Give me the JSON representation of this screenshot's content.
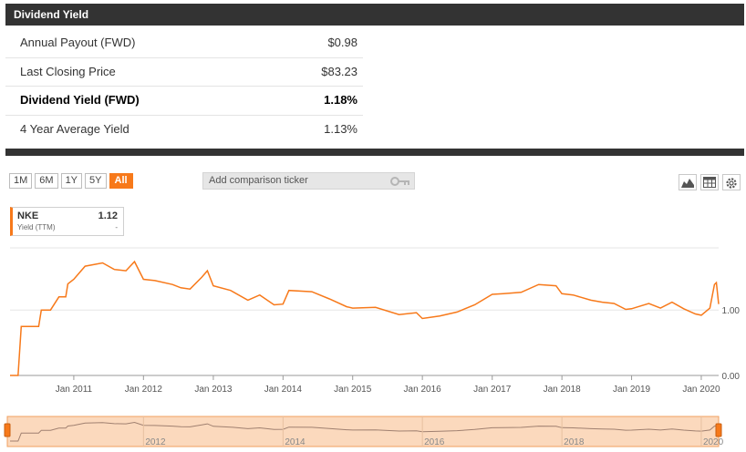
{
  "header": {
    "title": "Dividend Yield"
  },
  "stats": [
    {
      "label": "Annual Payout (FWD)",
      "value": "$0.98",
      "bold": false
    },
    {
      "label": "Last Closing Price",
      "value": "$83.23",
      "bold": false
    },
    {
      "label": "Dividend Yield (FWD)",
      "value": "1.18%",
      "bold": true
    },
    {
      "label": "4 Year Average Yield",
      "value": "1.13%",
      "bold": false
    }
  ],
  "range_buttons": [
    "1M",
    "6M",
    "1Y",
    "5Y",
    "All"
  ],
  "active_range": "All",
  "comparison": {
    "placeholder": "Add comparison ticker",
    "icon": "key-icon"
  },
  "toolbar_icons": [
    "mountain-chart-icon",
    "table-icon",
    "gear-icon"
  ],
  "legend": {
    "ticker": "NKE",
    "value": "1.12",
    "series_label": "Yield (TTM)",
    "series_value": "-"
  },
  "colors": {
    "accent": "#f7791a",
    "header_bg": "#333333",
    "navigator_fill": "#fbd9bd"
  },
  "chart_data": {
    "type": "line",
    "title": "",
    "xlabel": "",
    "ylabel": "",
    "x_ticks": [
      "Jan 2011",
      "Jan 2012",
      "Jan 2013",
      "Jan 2014",
      "Jan 2015",
      "Jan 2016",
      "Jan 2017",
      "Jan 2018",
      "Jan 2019",
      "Jan 2020"
    ],
    "y_ticks": [
      "1.00",
      "0.00"
    ],
    "ylim": [
      0,
      1.95
    ],
    "xlim": [
      "2010-02-01",
      "2020-04-01"
    ],
    "grid": true,
    "series": [
      {
        "name": "NKE",
        "x": [
          "2010-02-01",
          "2010-03-15",
          "2010-04-01",
          "2010-07-01",
          "2010-07-15",
          "2010-09-01",
          "2010-10-15",
          "2010-11-20",
          "2010-12-01",
          "2011-01-01",
          "2011-03-01",
          "2011-06-01",
          "2011-08-01",
          "2011-10-01",
          "2011-11-15",
          "2012-01-01",
          "2012-03-01",
          "2012-06-01",
          "2012-07-15",
          "2012-09-01",
          "2012-11-01",
          "2012-12-01",
          "2013-01-01",
          "2013-04-01",
          "2013-07-01",
          "2013-09-01",
          "2013-11-15",
          "2014-01-01",
          "2014-02-01",
          "2014-06-01",
          "2014-09-01",
          "2014-12-01",
          "2015-01-01",
          "2015-05-01",
          "2015-09-01",
          "2015-12-01",
          "2016-01-01",
          "2016-04-01",
          "2016-07-01",
          "2016-10-01",
          "2017-01-01",
          "2017-03-01",
          "2017-06-01",
          "2017-09-01",
          "2017-12-01",
          "2018-01-01",
          "2018-03-01",
          "2018-06-01",
          "2018-08-01",
          "2018-10-01",
          "2018-12-01",
          "2019-01-01",
          "2019-04-01",
          "2019-06-01",
          "2019-08-01",
          "2019-10-01",
          "2019-12-01",
          "2020-01-01",
          "2020-02-15",
          "2020-03-10",
          "2020-03-20",
          "2020-04-01"
        ],
        "y": [
          0.0,
          0.0,
          0.75,
          0.75,
          1.0,
          1.0,
          1.2,
          1.2,
          1.4,
          1.47,
          1.67,
          1.72,
          1.62,
          1.6,
          1.74,
          1.47,
          1.45,
          1.39,
          1.34,
          1.32,
          1.5,
          1.6,
          1.37,
          1.3,
          1.15,
          1.23,
          1.08,
          1.09,
          1.3,
          1.28,
          1.17,
          1.05,
          1.03,
          1.04,
          0.93,
          0.96,
          0.87,
          0.91,
          0.97,
          1.08,
          1.24,
          1.25,
          1.27,
          1.39,
          1.37,
          1.25,
          1.23,
          1.15,
          1.12,
          1.1,
          1.01,
          1.02,
          1.1,
          1.03,
          1.12,
          1.02,
          0.94,
          0.92,
          1.03,
          1.39,
          1.42,
          1.09
        ]
      }
    ]
  },
  "navigator": {
    "labels": [
      "2012",
      "2014",
      "2016",
      "2018",
      "2020"
    ]
  }
}
